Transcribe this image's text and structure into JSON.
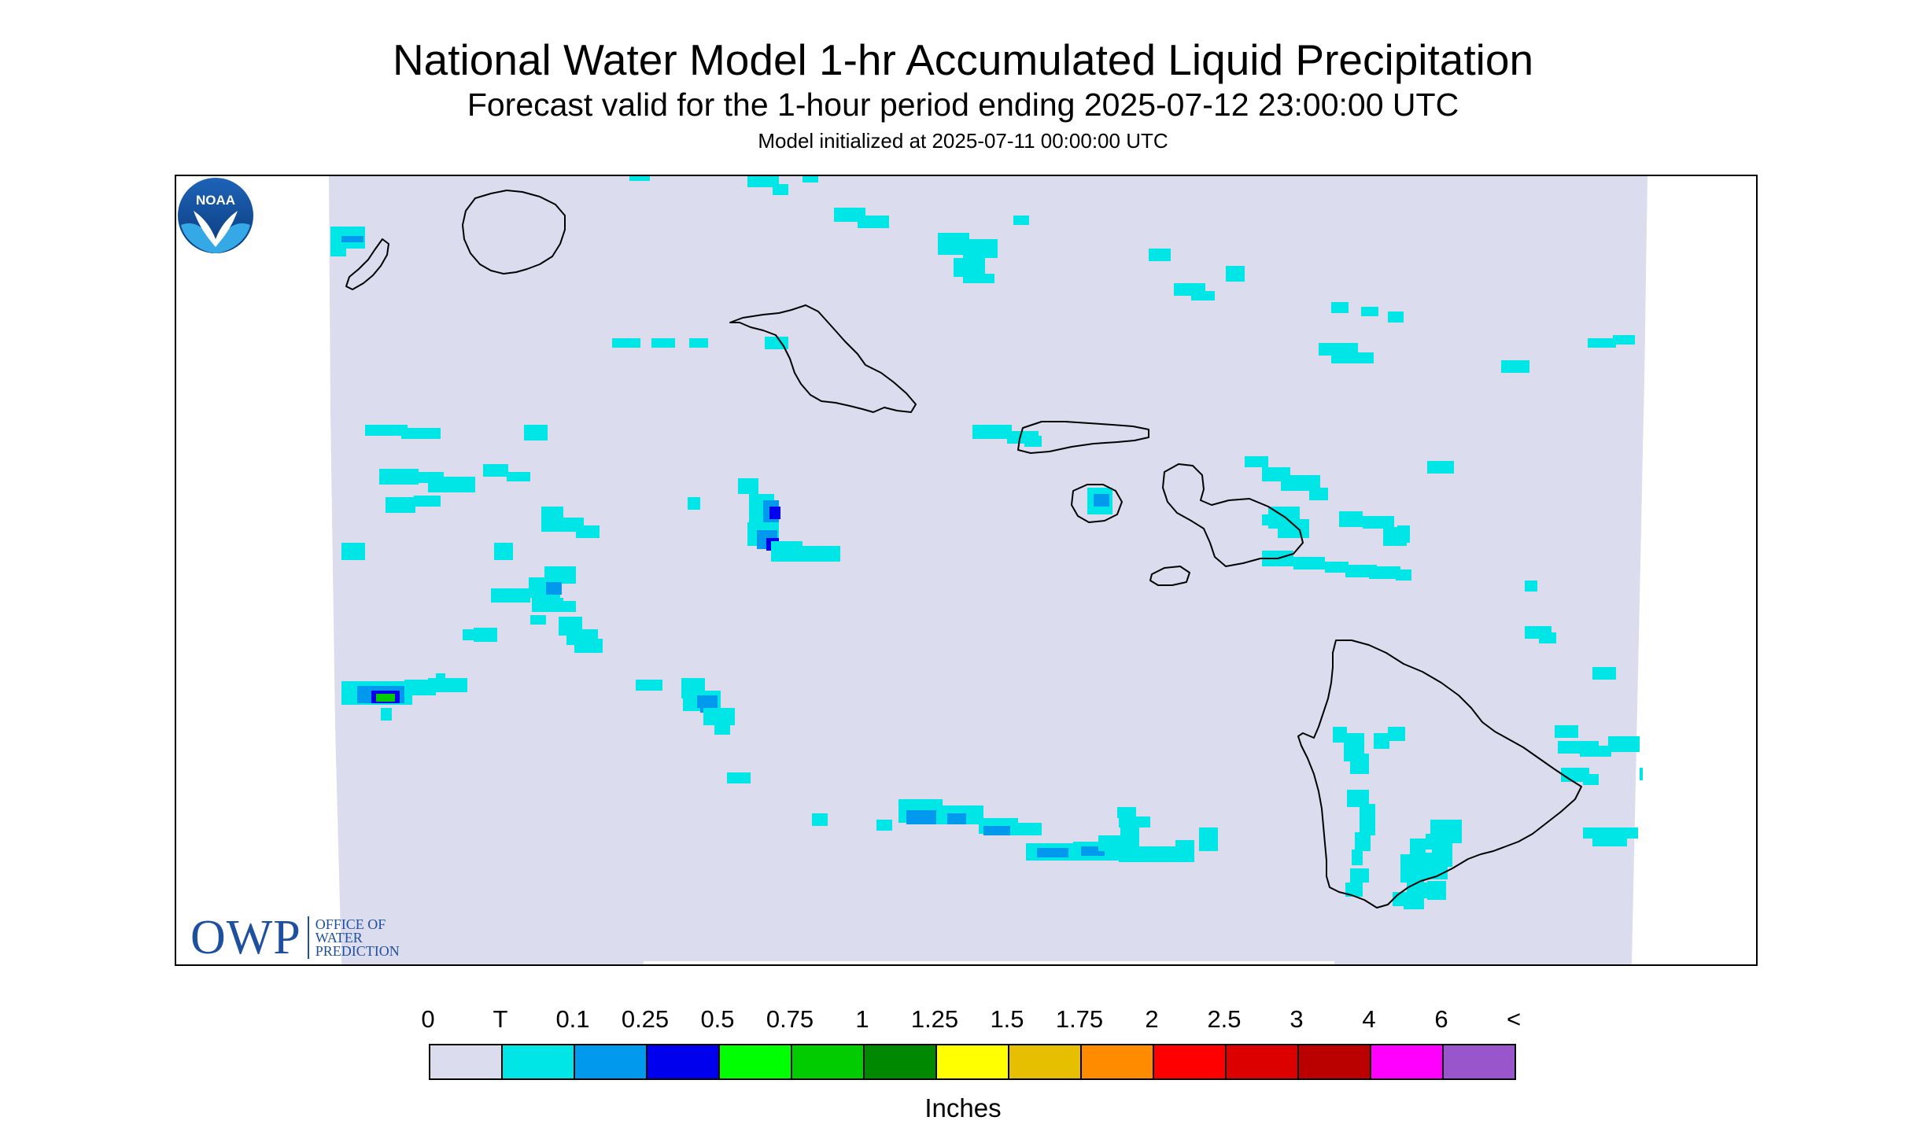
{
  "title": "National Water Model 1-hr Accumulated Liquid Precipitation",
  "subtitle": "Forecast valid for the 1-hour period ending 2025-07-12 23:00:00 UTC",
  "init_line": "Model initialized at 2025-07-11 00:00:00 UTC",
  "logo_owp": {
    "letters": "OWP",
    "line1": "OFFICE OF",
    "line2": "WATER",
    "line3": "PREDICTION"
  },
  "logo_noaa": "NOAA",
  "legend": {
    "labels": [
      "0",
      "T",
      "0.1",
      "0.25",
      "0.5",
      "0.75",
      "1",
      "1.25",
      "1.5",
      "1.75",
      "2",
      "2.5",
      "3",
      "4",
      "6",
      "<"
    ],
    "colors": [
      "#dcdcef",
      "#00e5e5",
      "#0099ee",
      "#0000ee",
      "#00ff00",
      "#00cc00",
      "#008800",
      "#ffff00",
      "#e5bf00",
      "#ff8c00",
      "#ff0000",
      "#dd0000",
      "#bb0000",
      "#ff00ff",
      "#9955cc"
    ],
    "unit": "Inches"
  },
  "map": {
    "background_color": "#dcdcef",
    "coastline_color": "#000000",
    "islands": [
      "Kauai",
      "Niihau",
      "Oahu",
      "Molokai",
      "Lanai",
      "Maui",
      "Kahoolawe",
      "Hawaii"
    ]
  }
}
